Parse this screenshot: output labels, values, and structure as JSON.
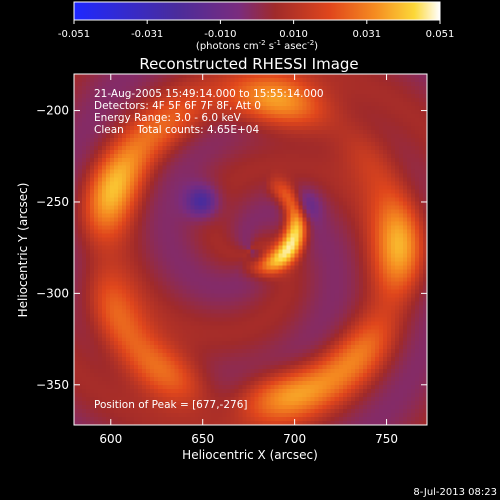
{
  "colorbar": {
    "ticks": [
      "-0.051",
      "-0.031",
      "-0.010",
      "0.010",
      "0.031",
      "0.051"
    ],
    "units_prefix": "(photons cm",
    "units_exp1": "-2",
    "units_mid1": " s",
    "units_exp2": "-1",
    "units_mid2": " asec",
    "units_exp3": "-2",
    "units_suffix": ")",
    "range": [
      -0.051,
      0.051
    ]
  },
  "info": {
    "time": "21-Aug-2005 15:49:14.000 to 15:55:14.000",
    "detectors": "Detectors: 4F 5F 6F 7F 8F, Att 0",
    "energy": "Energy Range: 3.0 - 6.0 keV",
    "clean": "Clean    Total counts: 4.65E+04",
    "peak": "Position of Peak = [677,-276]"
  },
  "footer": {
    "date": "8-Jul-2013 08:23"
  },
  "colors": {
    "background": "#000000",
    "axis": "#ffffff",
    "colormap": [
      "#1e28ff",
      "#4a2c9c",
      "#7a2c7e",
      "#a02a2a",
      "#e0461c",
      "#f58a20",
      "#fcd838",
      "#ffffff"
    ]
  },
  "chart_data": {
    "type": "heatmap",
    "title": "Reconstructed RHESSI Image",
    "xlabel": "Heliocentric X (arcsec)",
    "ylabel": "Heliocentric Y (arcsec)",
    "xlim": [
      580,
      772
    ],
    "ylim": [
      -372,
      -180
    ],
    "x_ticks": [
      600,
      650,
      700,
      750
    ],
    "y_ticks": [
      -200,
      -250,
      -300,
      -350
    ],
    "x_tick_labels": [
      "600",
      "650",
      "700",
      "750"
    ],
    "y_tick_labels": [
      "−200",
      "−250",
      "−300",
      "−350"
    ],
    "peak": {
      "x": 677,
      "y": -276,
      "value": 0.051
    },
    "features": [
      {
        "kind": "source-crescent",
        "x": 677,
        "y": -262,
        "value": 0.05
      },
      {
        "kind": "ring",
        "center_x": 676,
        "center_y": -276,
        "radius": 82,
        "value": 0.033
      },
      {
        "kind": "minimum",
        "x": 650,
        "y": -250,
        "value": -0.04
      },
      {
        "kind": "minimum",
        "x": 705,
        "y": -252,
        "value": -0.03
      }
    ],
    "colorbar_range": [
      -0.051,
      0.051
    ]
  }
}
